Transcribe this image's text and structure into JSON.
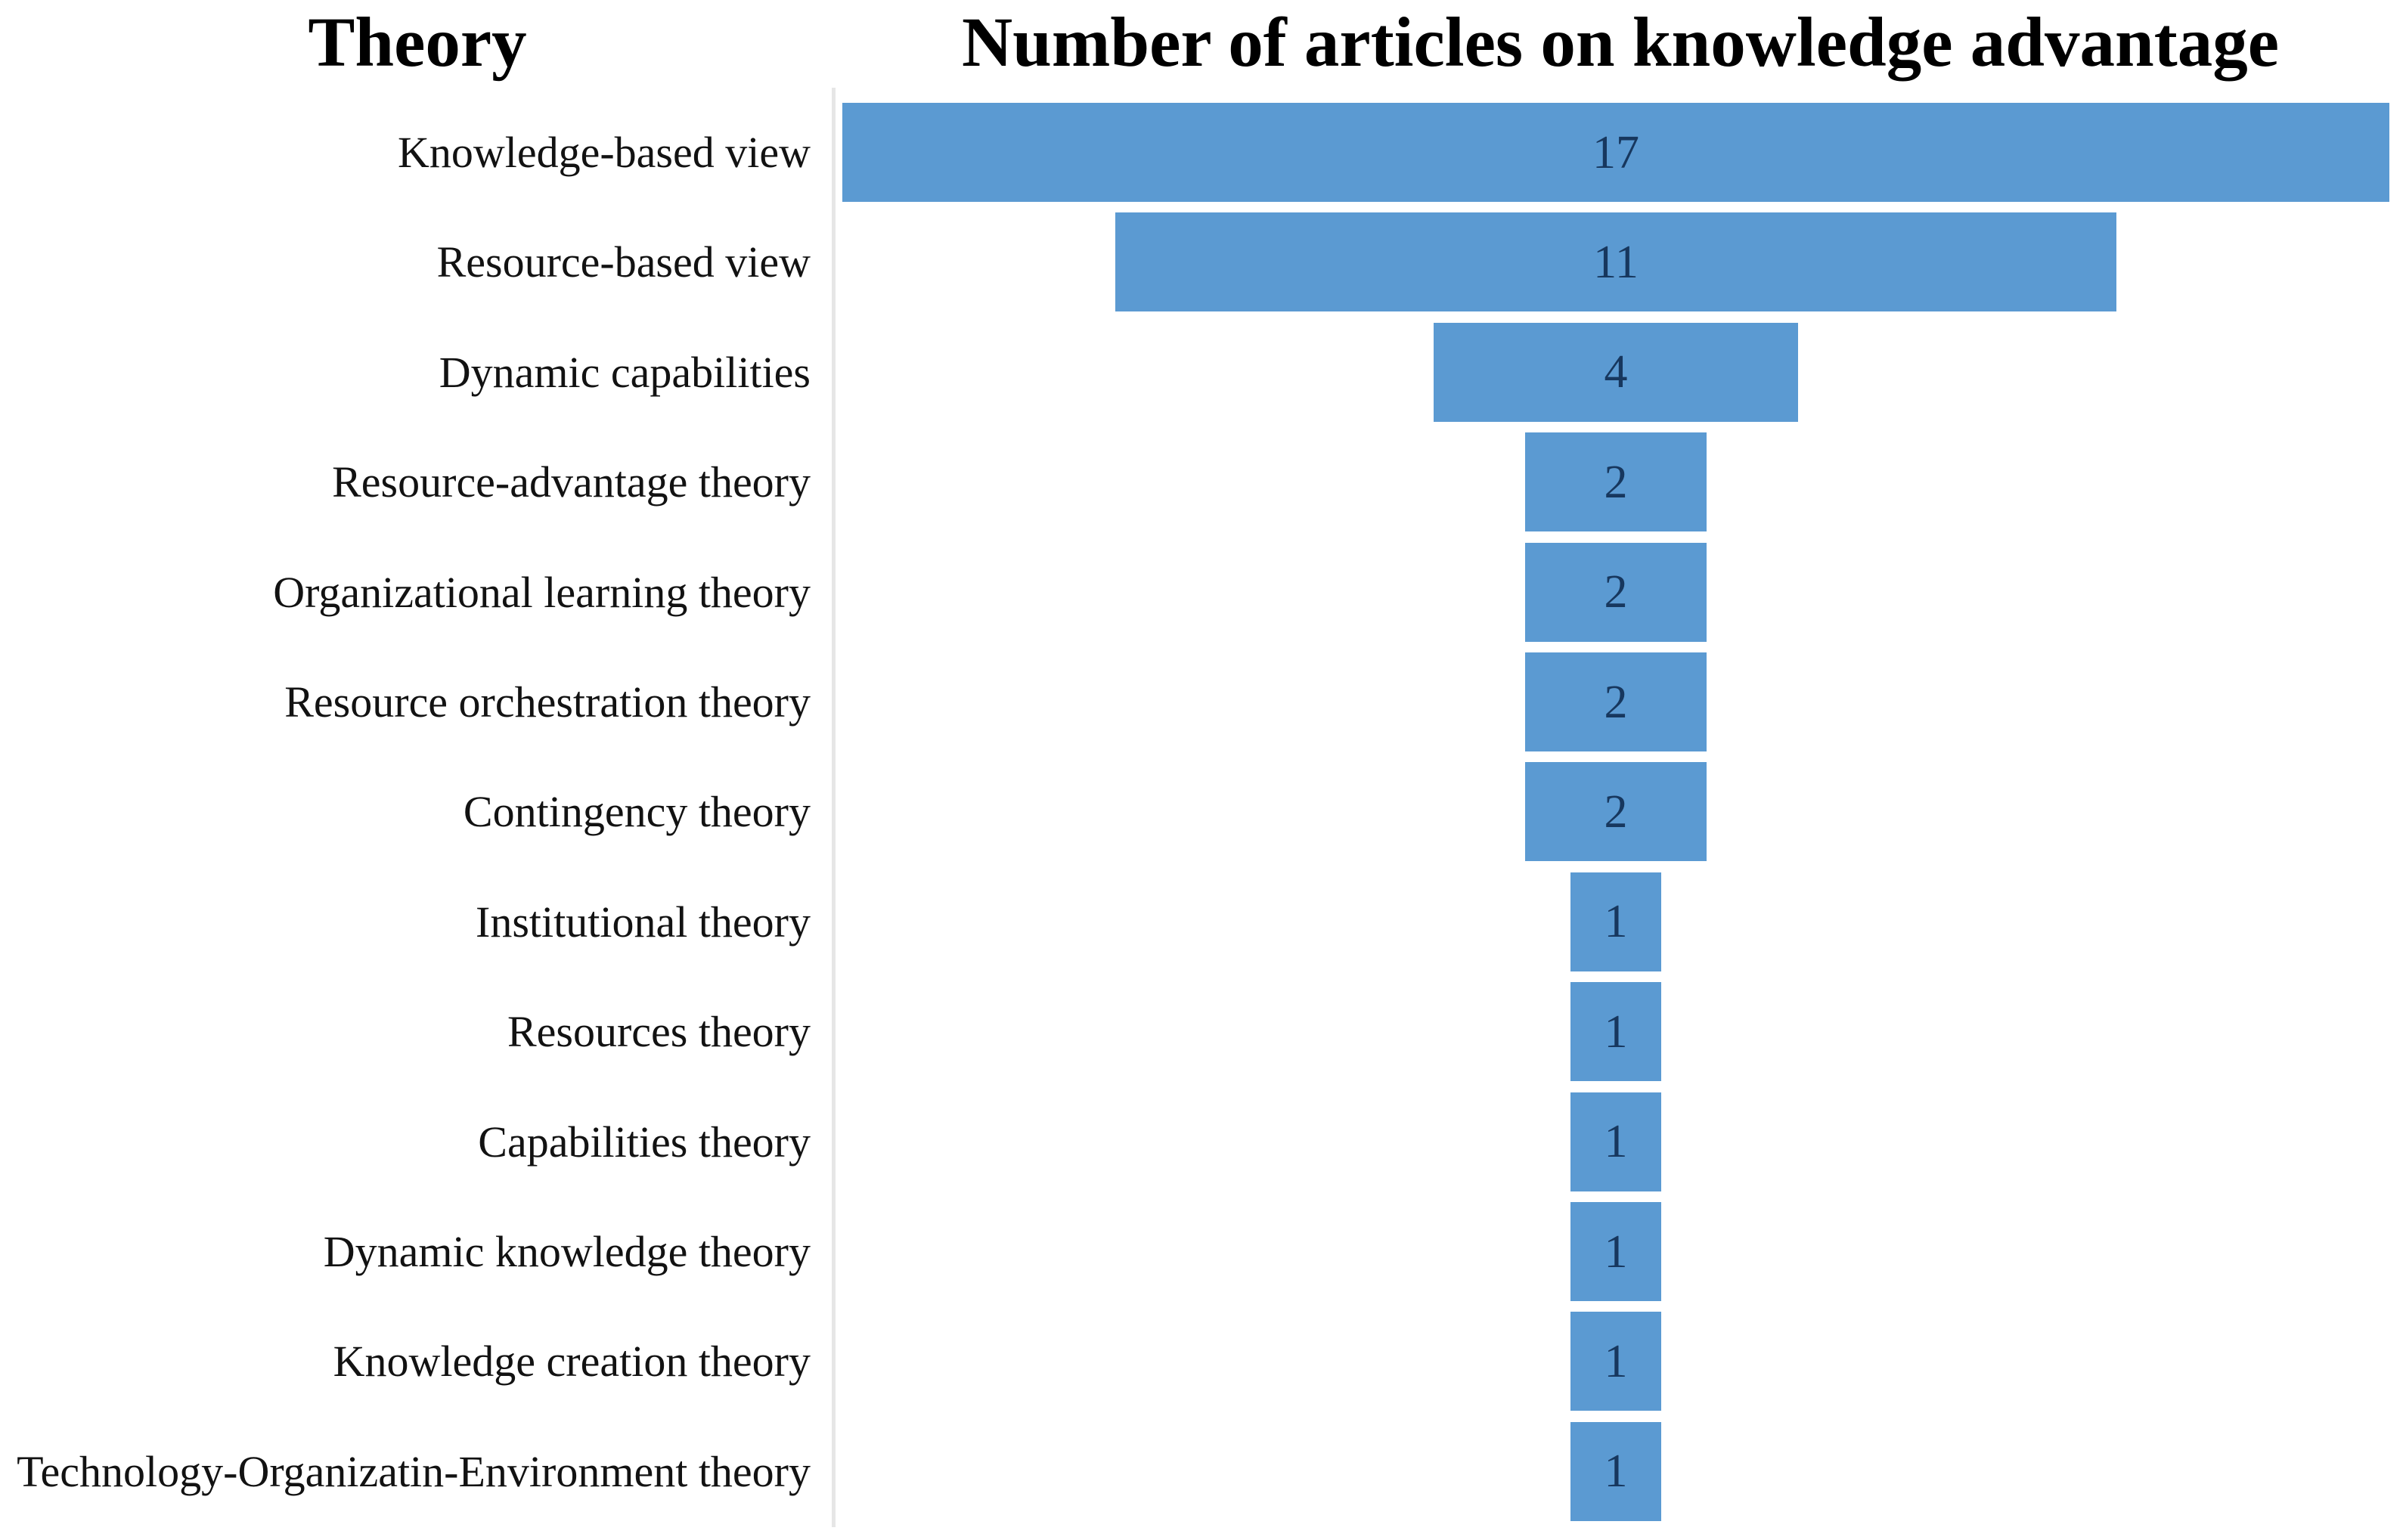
{
  "chart_data": {
    "type": "bar",
    "subtype": "horizontal-centered-funnel",
    "title_left": "Theory",
    "title_right": "Number of articles on knowledge advantage",
    "categories": [
      "Knowledge-based view",
      "Resource-based view",
      "Dynamic capabilities",
      "Resource-advantage theory",
      "Organizational learning theory",
      "Resource orchestration theory",
      "Contingency theory",
      "Institutional theory",
      "Resources theory",
      "Capabilities theory",
      "Dynamic knowledge theory",
      "Knowledge creation theory",
      "Technology-Organizatin-Environment theory"
    ],
    "values": [
      17,
      11,
      4,
      2,
      2,
      2,
      2,
      1,
      1,
      1,
      1,
      1,
      1
    ],
    "value_labels": [
      "17",
      "11",
      "4",
      "2",
      "2",
      "2",
      "2",
      "1",
      "1",
      "1",
      "1",
      "1",
      "1"
    ],
    "xlim": [
      0,
      17
    ],
    "grid": false,
    "legend": false,
    "value_labels_position": "inside-center",
    "colors": {
      "bar_fill": "#5B9AD2",
      "value_text": "#17375E",
      "label_text": "#121212",
      "header_text": "#000000",
      "axis_line": "#E6E6E6",
      "background": "#FFFFFF"
    }
  }
}
